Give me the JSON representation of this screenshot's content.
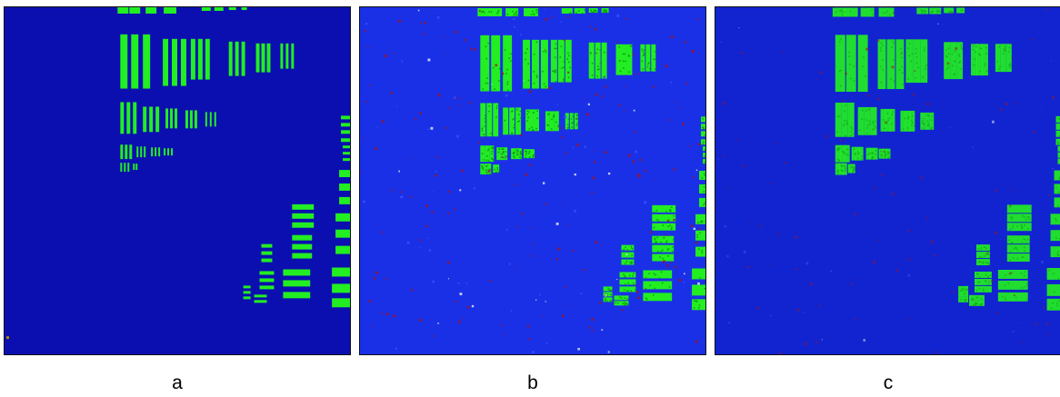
{
  "figure": {
    "panels": [
      {
        "label": "a",
        "style": "clean"
      },
      {
        "label": "b",
        "style": "noisy"
      },
      {
        "label": "c",
        "style": "blurred"
      }
    ]
  },
  "colors": {
    "background_clean": "#0b0fb0",
    "background_noisy": "#1a30e6",
    "background_blurred": "#1224d0",
    "target_green": "#22ee22",
    "noise_red": "#a01020",
    "noise_white": "#e8f0ff"
  }
}
